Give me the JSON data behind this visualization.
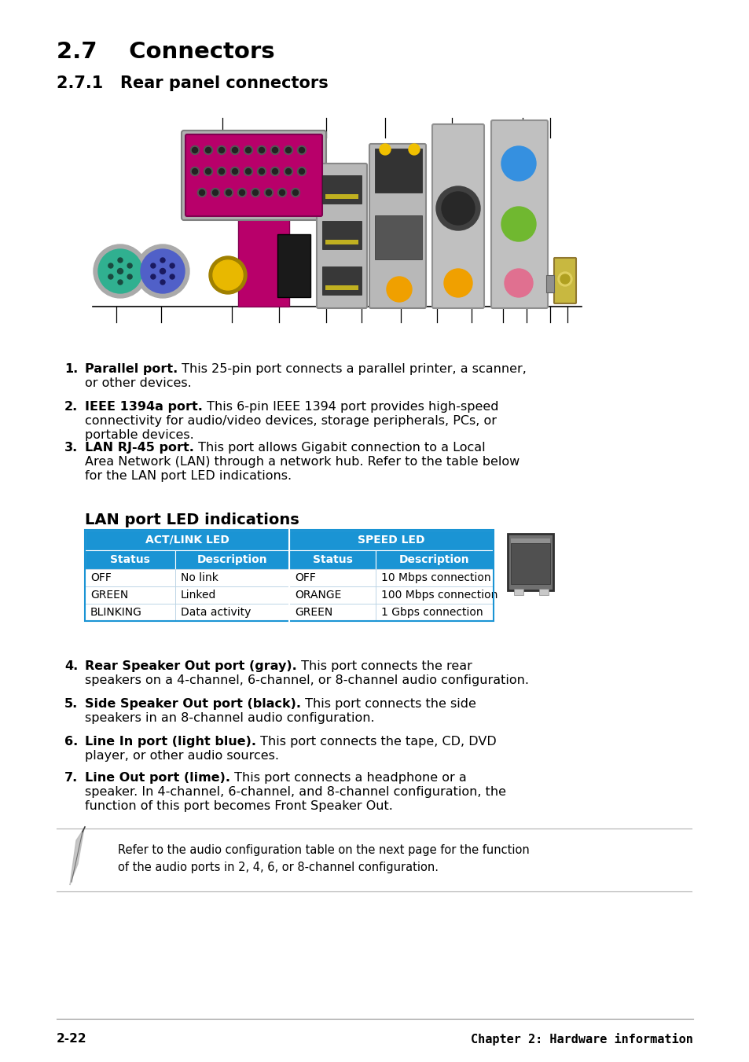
{
  "bg_color": "#ffffff",
  "title_27": "2.7    Connectors",
  "title_271": "2.7.1   Rear panel connectors",
  "table_header_bg": "#1a94d4",
  "table_title": "LAN port LED indications",
  "table_headers": [
    "ACT/LINK LED",
    "SPEED LED"
  ],
  "table_subheaders": [
    "Status",
    "Description",
    "Status",
    "Description"
  ],
  "table_rows": [
    [
      "OFF",
      "No link",
      "OFF",
      "10 Mbps connection"
    ],
    [
      "GREEN",
      "Linked",
      "ORANGE",
      "100 Mbps connection"
    ],
    [
      "BLINKING",
      "Data activity",
      "GREEN",
      "1 Gbps connection"
    ]
  ],
  "note_text": "Refer to the audio configuration table on the next page for the function\nof the audio ports in 2, 4, 6, or 8-channel configuration.",
  "footer_left": "2-22",
  "footer_right": "Chapter 2: Hardware information",
  "items": [
    {
      "num": "1.",
      "bold": "Parallel port.",
      "rest_line1": " This 25-pin port connects a parallel printer, a scanner,",
      "extra_lines": [
        "or other devices."
      ]
    },
    {
      "num": "2.",
      "bold": "IEEE 1394a port.",
      "rest_line1": " This 6-pin IEEE 1394 port provides high-speed",
      "extra_lines": [
        "connectivity for audio/video devices, storage peripherals, PCs, or",
        "portable devices."
      ]
    },
    {
      "num": "3.",
      "bold": "LAN RJ-45 port.",
      "rest_line1": " This port allows Gigabit connection to a Local",
      "extra_lines": [
        "Area Network (LAN) through a network hub. Refer to the table below",
        "for the LAN port LED indications."
      ]
    },
    {
      "num": "4.",
      "bold": "Rear Speaker Out port (gray).",
      "rest_line1": " This port connects the rear",
      "extra_lines": [
        "speakers on a 4-channel, 6-channel, or 8-channel audio configuration."
      ]
    },
    {
      "num": "5.",
      "bold": "Side Speaker Out port (black).",
      "rest_line1": " This port connects the side",
      "extra_lines": [
        "speakers in an 8-channel audio configuration."
      ]
    },
    {
      "num": "6.",
      "bold": "Line In port (light blue).",
      "rest_line1": " This port connects the tape, CD, DVD",
      "extra_lines": [
        "player, or other audio sources."
      ]
    },
    {
      "num": "7.",
      "bold": "Line Out port (lime).",
      "rest_line1": " This port connects a headphone or a",
      "extra_lines": [
        "speaker. In 4-channel, 6-channel, and 8-channel configuration, the",
        "function of this port becomes Front Speaker Out."
      ]
    }
  ]
}
